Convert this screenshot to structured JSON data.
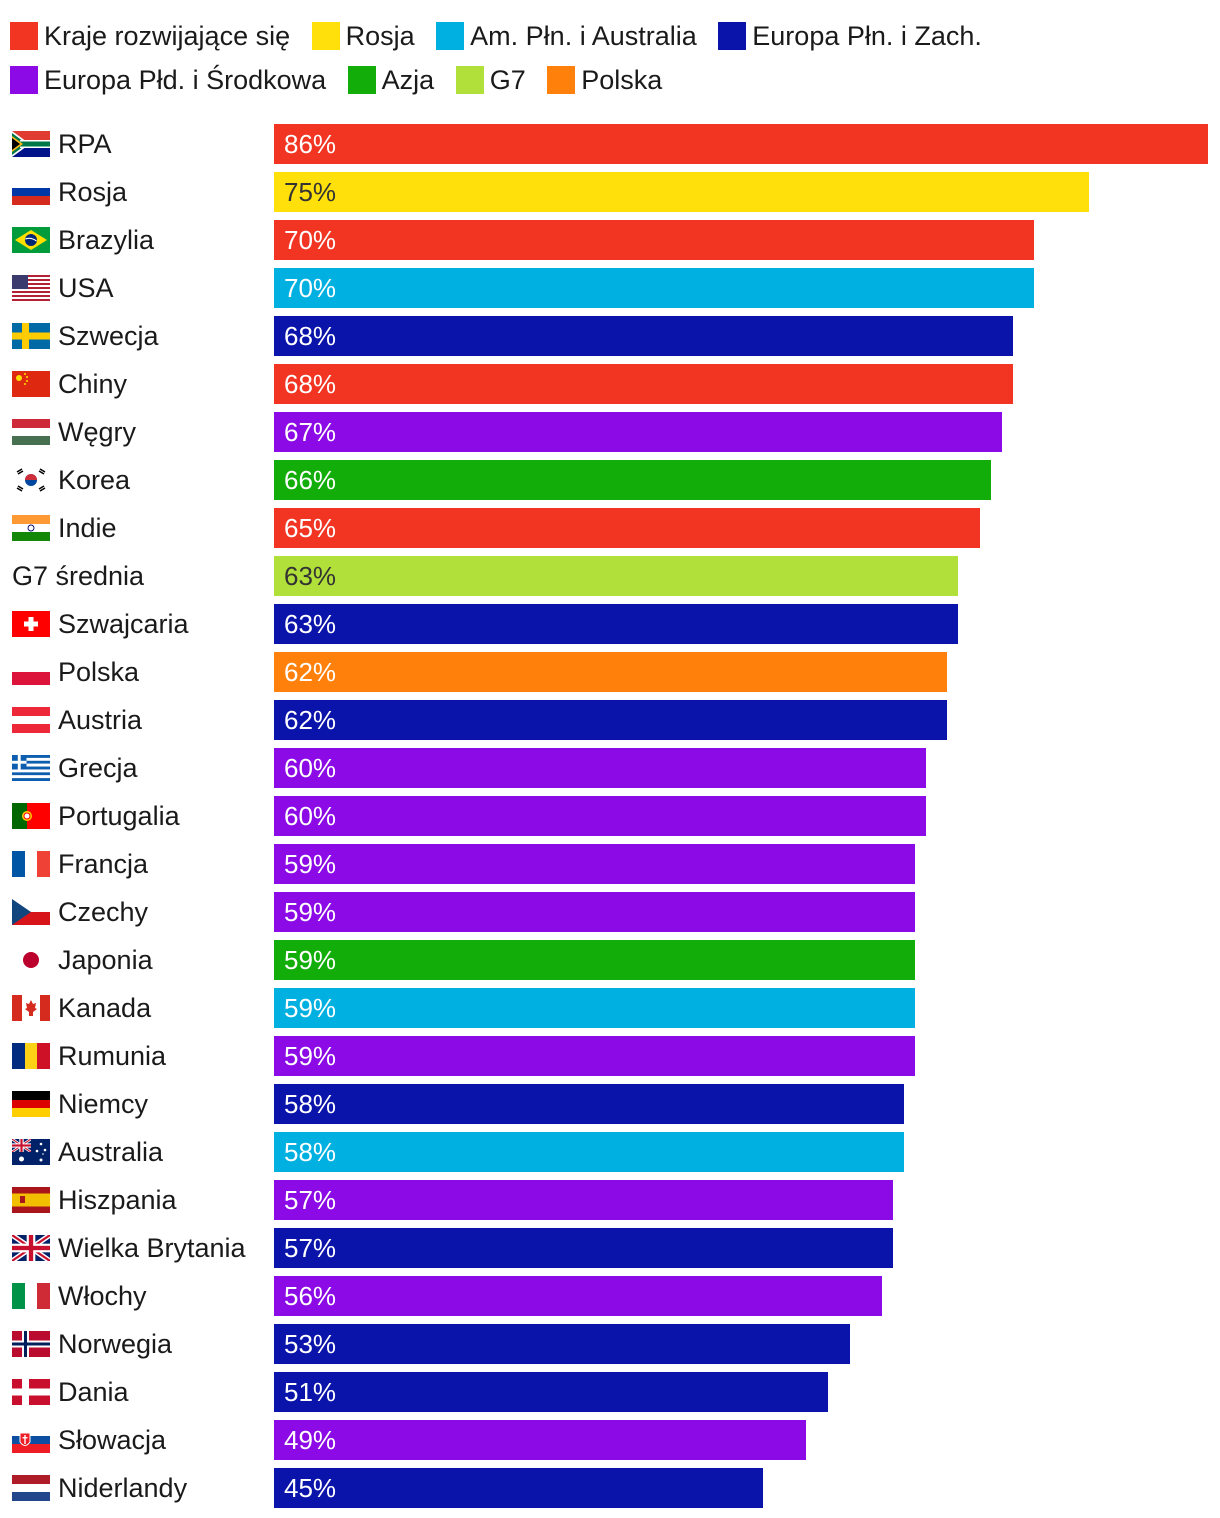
{
  "chart_data": {
    "type": "bar",
    "orientation": "horizontal",
    "title": "",
    "xlabel": "",
    "ylabel": "",
    "xlim": [
      0,
      86
    ],
    "legend_placement": "top",
    "grid": false,
    "legend": [
      {
        "key": "dev",
        "name": "Kraje rozwijające się",
        "color": "#f23522"
      },
      {
        "key": "ru",
        "name": "Rosja",
        "color": "#ffe00a"
      },
      {
        "key": "na",
        "name": "Am. Płn. i Australia",
        "color": "#00b0e0"
      },
      {
        "key": "eu_nw",
        "name": "Europa Płn. i Zach.",
        "color": "#0a14aa"
      },
      {
        "key": "eu_sc",
        "name": "Europa Płd. i Środkowa",
        "color": "#8c0ae6"
      },
      {
        "key": "asia",
        "name": "Azja",
        "color": "#12ad09"
      },
      {
        "key": "g7",
        "name": "G7",
        "color": "#b2e03a"
      },
      {
        "key": "pl",
        "name": "Polska",
        "color": "#ff800a"
      }
    ],
    "bars": [
      {
        "label": "RPA",
        "value": 86,
        "value_label": "86%",
        "group": "dev",
        "flag": "south-africa"
      },
      {
        "label": "Rosja",
        "value": 75,
        "value_label": "75%",
        "group": "ru",
        "flag": "russia"
      },
      {
        "label": "Brazylia",
        "value": 70,
        "value_label": "70%",
        "group": "dev",
        "flag": "brazil"
      },
      {
        "label": "USA",
        "value": 70,
        "value_label": "70%",
        "group": "na",
        "flag": "usa"
      },
      {
        "label": "Szwecja",
        "value": 68,
        "value_label": "68%",
        "group": "eu_nw",
        "flag": "sweden"
      },
      {
        "label": "Chiny",
        "value": 68,
        "value_label": "68%",
        "group": "dev",
        "flag": "china"
      },
      {
        "label": "Węgry",
        "value": 67,
        "value_label": "67%",
        "group": "eu_sc",
        "flag": "hungary"
      },
      {
        "label": "Korea",
        "value": 66,
        "value_label": "66%",
        "group": "asia",
        "flag": "korea"
      },
      {
        "label": "Indie",
        "value": 65,
        "value_label": "65%",
        "group": "dev",
        "flag": "india"
      },
      {
        "label": "G7 średnia",
        "value": 63,
        "value_label": "63%",
        "group": "g7",
        "flag": ""
      },
      {
        "label": "Szwajcaria",
        "value": 63,
        "value_label": "63%",
        "group": "eu_nw",
        "flag": "switzerland"
      },
      {
        "label": "Polska",
        "value": 62,
        "value_label": "62%",
        "group": "pl",
        "flag": "poland"
      },
      {
        "label": "Austria",
        "value": 62,
        "value_label": "62%",
        "group": "eu_nw",
        "flag": "austria"
      },
      {
        "label": "Grecja",
        "value": 60,
        "value_label": "60%",
        "group": "eu_sc",
        "flag": "greece"
      },
      {
        "label": "Portugalia",
        "value": 60,
        "value_label": "60%",
        "group": "eu_sc",
        "flag": "portugal"
      },
      {
        "label": "Francja",
        "value": 59,
        "value_label": "59%",
        "group": "eu_sc",
        "flag": "france"
      },
      {
        "label": "Czechy",
        "value": 59,
        "value_label": "59%",
        "group": "eu_sc",
        "flag": "czechia"
      },
      {
        "label": "Japonia",
        "value": 59,
        "value_label": "59%",
        "group": "asia",
        "flag": "japan"
      },
      {
        "label": "Kanada",
        "value": 59,
        "value_label": "59%",
        "group": "na",
        "flag": "canada"
      },
      {
        "label": "Rumunia",
        "value": 59,
        "value_label": "59%",
        "group": "eu_sc",
        "flag": "romania"
      },
      {
        "label": "Niemcy",
        "value": 58,
        "value_label": "58%",
        "group": "eu_nw",
        "flag": "germany"
      },
      {
        "label": "Australia",
        "value": 58,
        "value_label": "58%",
        "group": "na",
        "flag": "australia"
      },
      {
        "label": "Hiszpania",
        "value": 57,
        "value_label": "57%",
        "group": "eu_sc",
        "flag": "spain"
      },
      {
        "label": "Wielka Brytania",
        "value": 57,
        "value_label": "57%",
        "group": "eu_nw",
        "flag": "uk"
      },
      {
        "label": "Włochy",
        "value": 56,
        "value_label": "56%",
        "group": "eu_sc",
        "flag": "italy"
      },
      {
        "label": "Norwegia",
        "value": 53,
        "value_label": "53%",
        "group": "eu_nw",
        "flag": "norway"
      },
      {
        "label": "Dania",
        "value": 51,
        "value_label": "51%",
        "group": "eu_nw",
        "flag": "denmark"
      },
      {
        "label": "Słowacja",
        "value": 49,
        "value_label": "49%",
        "group": "eu_sc",
        "flag": "slovakia"
      },
      {
        "label": "Niderlandy",
        "value": 45,
        "value_label": "45%",
        "group": "eu_nw",
        "flag": "netherlands"
      }
    ]
  }
}
